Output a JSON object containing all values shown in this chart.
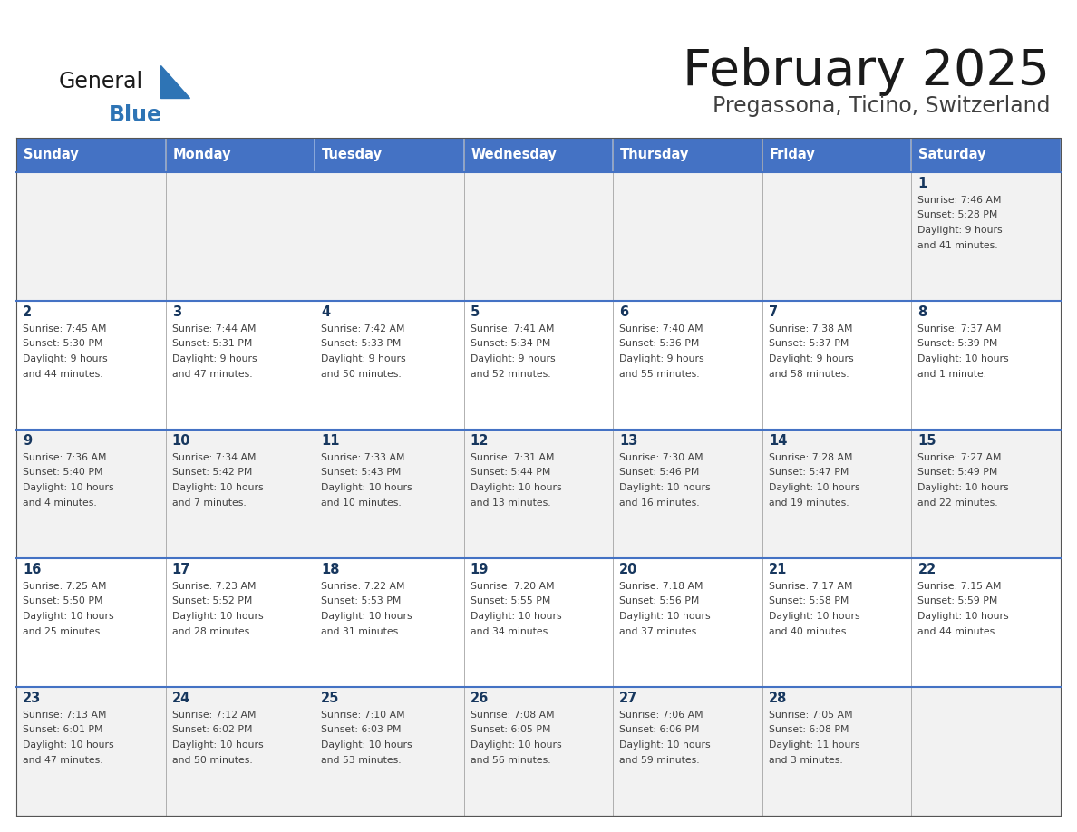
{
  "title": "February 2025",
  "subtitle": "Pregassona, Ticino, Switzerland",
  "days_of_week": [
    "Sunday",
    "Monday",
    "Tuesday",
    "Wednesday",
    "Thursday",
    "Friday",
    "Saturday"
  ],
  "header_bg": "#4472C4",
  "header_text": "#FFFFFF",
  "row_bg_odd": "#F2F2F2",
  "row_bg_even": "#FFFFFF",
  "cell_border_color": "#AAAAAA",
  "week_line_color": "#4472C4",
  "day_number_color": "#17375E",
  "info_text_color": "#404040",
  "title_color": "#1A1A1A",
  "subtitle_color": "#404040",
  "logo_general_color": "#1A1A1A",
  "logo_blue_color": "#2E74B5",
  "weeks": [
    [
      null,
      null,
      null,
      null,
      null,
      null,
      1
    ],
    [
      2,
      3,
      4,
      5,
      6,
      7,
      8
    ],
    [
      9,
      10,
      11,
      12,
      13,
      14,
      15
    ],
    [
      16,
      17,
      18,
      19,
      20,
      21,
      22
    ],
    [
      23,
      24,
      25,
      26,
      27,
      28,
      null
    ]
  ],
  "cell_data": {
    "1": {
      "sunrise": "7:46 AM",
      "sunset": "5:28 PM",
      "daylight": "9 hours and 41 minutes."
    },
    "2": {
      "sunrise": "7:45 AM",
      "sunset": "5:30 PM",
      "daylight": "9 hours and 44 minutes."
    },
    "3": {
      "sunrise": "7:44 AM",
      "sunset": "5:31 PM",
      "daylight": "9 hours and 47 minutes."
    },
    "4": {
      "sunrise": "7:42 AM",
      "sunset": "5:33 PM",
      "daylight": "9 hours and 50 minutes."
    },
    "5": {
      "sunrise": "7:41 AM",
      "sunset": "5:34 PM",
      "daylight": "9 hours and 52 minutes."
    },
    "6": {
      "sunrise": "7:40 AM",
      "sunset": "5:36 PM",
      "daylight": "9 hours and 55 minutes."
    },
    "7": {
      "sunrise": "7:38 AM",
      "sunset": "5:37 PM",
      "daylight": "9 hours and 58 minutes."
    },
    "8": {
      "sunrise": "7:37 AM",
      "sunset": "5:39 PM",
      "daylight": "10 hours and 1 minute."
    },
    "9": {
      "sunrise": "7:36 AM",
      "sunset": "5:40 PM",
      "daylight": "10 hours and 4 minutes."
    },
    "10": {
      "sunrise": "7:34 AM",
      "sunset": "5:42 PM",
      "daylight": "10 hours and 7 minutes."
    },
    "11": {
      "sunrise": "7:33 AM",
      "sunset": "5:43 PM",
      "daylight": "10 hours and 10 minutes."
    },
    "12": {
      "sunrise": "7:31 AM",
      "sunset": "5:44 PM",
      "daylight": "10 hours and 13 minutes."
    },
    "13": {
      "sunrise": "7:30 AM",
      "sunset": "5:46 PM",
      "daylight": "10 hours and 16 minutes."
    },
    "14": {
      "sunrise": "7:28 AM",
      "sunset": "5:47 PM",
      "daylight": "10 hours and 19 minutes."
    },
    "15": {
      "sunrise": "7:27 AM",
      "sunset": "5:49 PM",
      "daylight": "10 hours and 22 minutes."
    },
    "16": {
      "sunrise": "7:25 AM",
      "sunset": "5:50 PM",
      "daylight": "10 hours and 25 minutes."
    },
    "17": {
      "sunrise": "7:23 AM",
      "sunset": "5:52 PM",
      "daylight": "10 hours and 28 minutes."
    },
    "18": {
      "sunrise": "7:22 AM",
      "sunset": "5:53 PM",
      "daylight": "10 hours and 31 minutes."
    },
    "19": {
      "sunrise": "7:20 AM",
      "sunset": "5:55 PM",
      "daylight": "10 hours and 34 minutes."
    },
    "20": {
      "sunrise": "7:18 AM",
      "sunset": "5:56 PM",
      "daylight": "10 hours and 37 minutes."
    },
    "21": {
      "sunrise": "7:17 AM",
      "sunset": "5:58 PM",
      "daylight": "10 hours and 40 minutes."
    },
    "22": {
      "sunrise": "7:15 AM",
      "sunset": "5:59 PM",
      "daylight": "10 hours and 44 minutes."
    },
    "23": {
      "sunrise": "7:13 AM",
      "sunset": "6:01 PM",
      "daylight": "10 hours and 47 minutes."
    },
    "24": {
      "sunrise": "7:12 AM",
      "sunset": "6:02 PM",
      "daylight": "10 hours and 50 minutes."
    },
    "25": {
      "sunrise": "7:10 AM",
      "sunset": "6:03 PM",
      "daylight": "10 hours and 53 minutes."
    },
    "26": {
      "sunrise": "7:08 AM",
      "sunset": "6:05 PM",
      "daylight": "10 hours and 56 minutes."
    },
    "27": {
      "sunrise": "7:06 AM",
      "sunset": "6:06 PM",
      "daylight": "10 hours and 59 minutes."
    },
    "28": {
      "sunrise": "7:05 AM",
      "sunset": "6:08 PM",
      "daylight": "11 hours and 3 minutes."
    }
  },
  "figwidth": 11.88,
  "figheight": 9.18,
  "dpi": 100
}
